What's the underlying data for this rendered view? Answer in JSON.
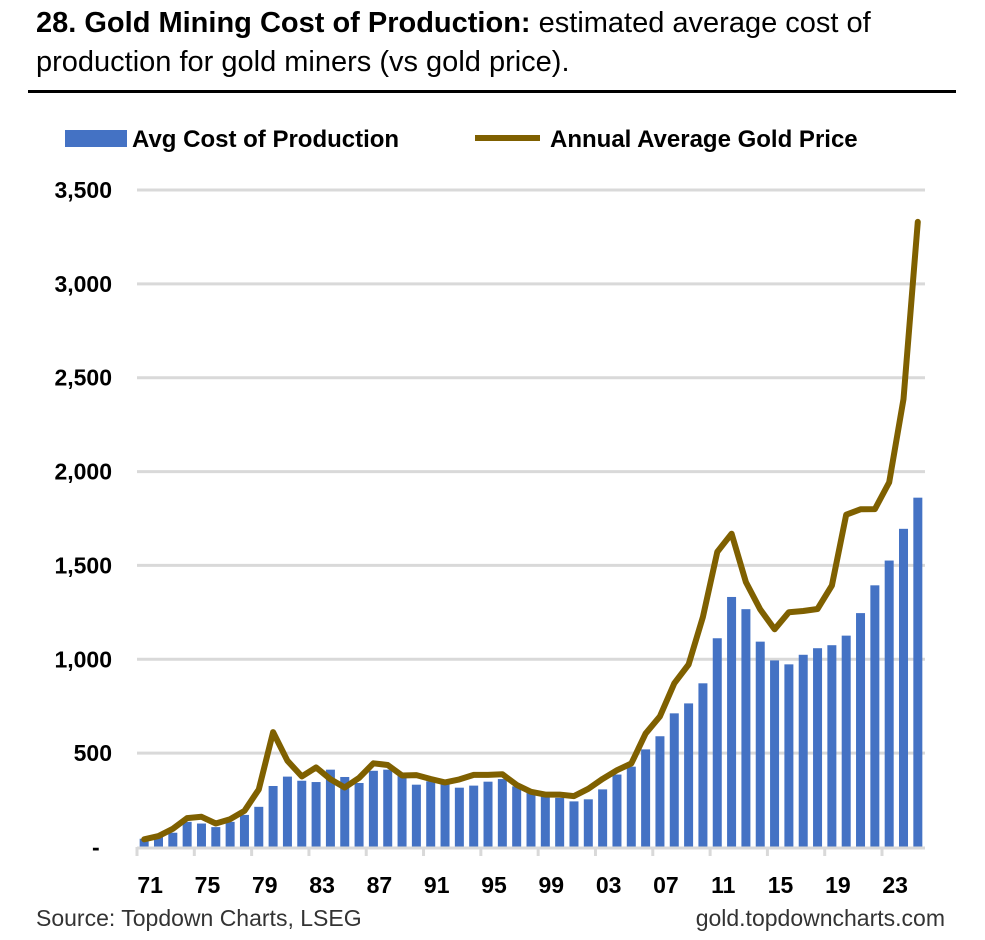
{
  "title": {
    "bold": "28. Gold Mining Cost of Production:",
    "rest": " estimated average cost of production for gold miners (vs gold price)."
  },
  "source": "Source: Topdown Charts, LSEG",
  "website": "gold.topdowncharts.com",
  "chart_data": {
    "type": "bar+line",
    "categories": [
      "71",
      "72",
      "73",
      "74",
      "75",
      "76",
      "77",
      "78",
      "79",
      "80",
      "81",
      "82",
      "83",
      "84",
      "85",
      "86",
      "87",
      "88",
      "89",
      "90",
      "91",
      "92",
      "93",
      "94",
      "95",
      "96",
      "97",
      "98",
      "99",
      "00",
      "01",
      "02",
      "03",
      "04",
      "05",
      "06",
      "07",
      "08",
      "09",
      "10",
      "11",
      "12",
      "13",
      "14",
      "15",
      "16",
      "17",
      "18",
      "19",
      "20",
      "21",
      "22",
      "23",
      "24",
      "25"
    ],
    "tick_labels": [
      "71",
      "75",
      "79",
      "83",
      "87",
      "91",
      "95",
      "99",
      "03",
      "07",
      "11",
      "15",
      "19",
      "23"
    ],
    "y_ticks": [
      {
        "v": 0,
        "label": "-"
      },
      {
        "v": 500,
        "label": "500"
      },
      {
        "v": 1000,
        "label": "1,000"
      },
      {
        "v": 1500,
        "label": "1,500"
      },
      {
        "v": 2000,
        "label": "2,000"
      },
      {
        "v": 2500,
        "label": "2,500"
      },
      {
        "v": 3000,
        "label": "3,000"
      },
      {
        "v": 3500,
        "label": "3,500"
      }
    ],
    "ylim": [
      0,
      3500
    ],
    "grid": true,
    "legend_position": "top",
    "series": [
      {
        "name": "Avg Cost of Production",
        "type": "bar",
        "color": "#4472C4",
        "values": [
          44,
          62,
          76,
          134,
          125,
          106,
          134,
          171,
          214,
          325,
          375,
          353,
          346,
          412,
          373,
          341,
          406,
          412,
          385,
          332,
          350,
          337,
          316,
          327,
          348,
          362,
          323,
          288,
          280,
          262,
          243,
          254,
          307,
          386,
          428,
          520,
          590,
          712,
          765,
          872,
          1112,
          1332,
          1267,
          1094,
          994,
          973,
          1024,
          1059,
          1075,
          1126,
          1246,
          1394,
          1526,
          1695,
          1861
        ]
      },
      {
        "name": "Annual Average Gold Price",
        "type": "line",
        "color": "#7F6000",
        "values": [
          41,
          58,
          97,
          154,
          161,
          125,
          148,
          193,
          307,
          612,
          460,
          376,
          424,
          361,
          317,
          368,
          446,
          437,
          381,
          383,
          362,
          344,
          360,
          384,
          384,
          388,
          331,
          294,
          279,
          279,
          271,
          310,
          363,
          409,
          445,
          604,
          696,
          872,
          972,
          1225,
          1572,
          1669,
          1411,
          1266,
          1160,
          1251,
          1257,
          1268,
          1393,
          1770,
          1799,
          1800,
          1943,
          2386,
          3330
        ]
      }
    ]
  }
}
